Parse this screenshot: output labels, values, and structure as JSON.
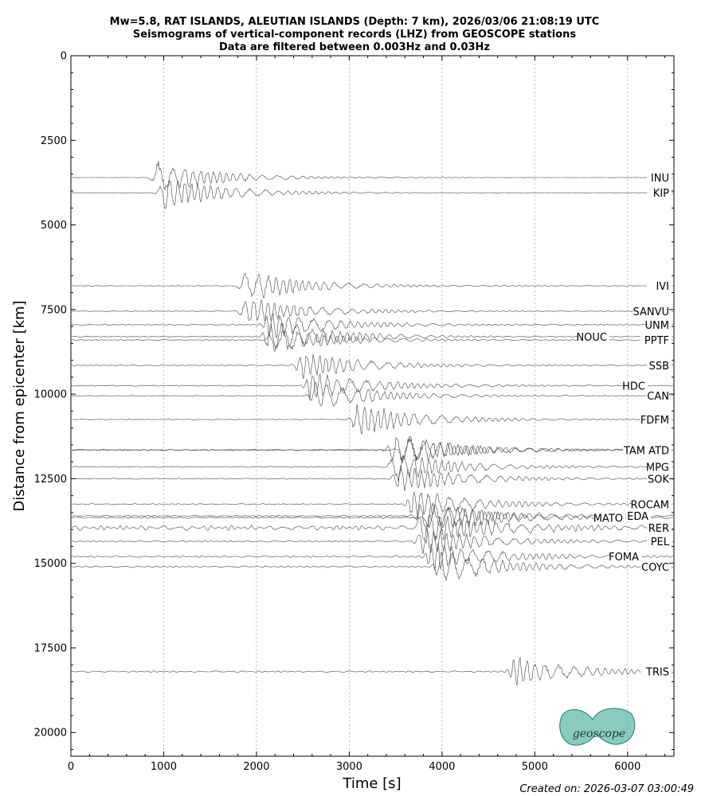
{
  "chart_data": {
    "type": "line",
    "title": [
      "Mw=5.8, RAT ISLANDS, ALEUTIAN ISLANDS (Depth: 7 km), 2026/03/06 21:08:19 UTC",
      "Seismograms of vertical-component records (LHZ) from GEOSCOPE stations",
      "Data are filtered between 0.003Hz and 0.03Hz"
    ],
    "xlabel": "Time [s]",
    "ylabel": "Distance from epicenter [km]",
    "xlim": [
      0,
      6500
    ],
    "ylim": [
      20700,
      0
    ],
    "y_inverted": true,
    "xticks": [
      "0",
      "1000",
      "2000",
      "3000",
      "4000",
      "5000",
      "6000"
    ],
    "yticks": [
      "0",
      "2500",
      "5000",
      "7500",
      "10000",
      "12500",
      "15000",
      "17500",
      "20000"
    ],
    "x_grid": "vertical dotted at major ticks",
    "trace_color": "#444444",
    "series": [
      {
        "name": "INU",
        "distance": 3600,
        "arrival": 950,
        "amp": 0.9,
        "noise": 0.05
      },
      {
        "name": "KIP",
        "distance": 4050,
        "arrival": 1020,
        "amp": 0.9,
        "noise": 0.05
      },
      {
        "name": "IVI",
        "distance": 6800,
        "arrival": 1900,
        "amp": 0.85,
        "noise": 0.12
      },
      {
        "name": "SANVU",
        "distance": 7550,
        "arrival": 1900,
        "amp": 0.8,
        "noise": 0.15
      },
      {
        "name": "UNM",
        "distance": 7950,
        "arrival": 2150,
        "amp": 0.8,
        "noise": 0.2
      },
      {
        "name": "NOUC",
        "distance": 8300,
        "arrival": 2150,
        "amp": 1.0,
        "noise": 0.15
      },
      {
        "name": "PPTF",
        "distance": 8400,
        "arrival": 2200,
        "amp": 0.7,
        "noise": 0.15
      },
      {
        "name": "SSB",
        "distance": 9150,
        "arrival": 2500,
        "amp": 0.75,
        "noise": 0.2
      },
      {
        "name": "HDC",
        "distance": 9750,
        "arrival": 2600,
        "amp": 0.8,
        "noise": 0.2
      },
      {
        "name": "CAN",
        "distance": 10050,
        "arrival": 2650,
        "amp": 0.8,
        "noise": 0.15
      },
      {
        "name": "FDFM",
        "distance": 10750,
        "arrival": 3100,
        "amp": 0.95,
        "noise": 0.12
      },
      {
        "name": "TAM",
        "distance": 11650,
        "arrival": 3500,
        "amp": 0.9,
        "noise": 0.25
      },
      {
        "name": "ATD",
        "distance": 11650,
        "arrival": 3600,
        "amp": 0.8,
        "noise": 0.2
      },
      {
        "name": "MPG",
        "distance": 12150,
        "arrival": 3500,
        "amp": 0.8,
        "noise": 0.2
      },
      {
        "name": "SOK",
        "distance": 12500,
        "arrival": 3550,
        "amp": 0.8,
        "noise": 0.2
      },
      {
        "name": "ROCAM",
        "distance": 13250,
        "arrival": 3700,
        "amp": 0.8,
        "noise": 0.2
      },
      {
        "name": "EDA",
        "distance": 13600,
        "arrival": 3800,
        "amp": 0.9,
        "noise": 0.3
      },
      {
        "name": "MATO",
        "distance": 13650,
        "arrival": 3900,
        "amp": 0.9,
        "noise": 0.3
      },
      {
        "name": "RER",
        "distance": 13950,
        "arrival": 3800,
        "amp": 0.9,
        "noise": 0.9
      },
      {
        "name": "PEL",
        "distance": 14350,
        "arrival": 3800,
        "amp": 0.8,
        "noise": 0.3
      },
      {
        "name": "FOMA",
        "distance": 14800,
        "arrival": 3900,
        "amp": 0.8,
        "noise": 0.35
      },
      {
        "name": "COYC",
        "distance": 15100,
        "arrival": 4000,
        "amp": 0.9,
        "noise": 0.3
      },
      {
        "name": "TRIS",
        "distance": 18200,
        "arrival": 4800,
        "amp": 0.8,
        "noise": 0.3
      }
    ]
  },
  "footer": {
    "created": "Created on: 2026-03-07 03:00:49"
  },
  "logo": {
    "text": "geoscope",
    "color": "#2aa08a"
  }
}
